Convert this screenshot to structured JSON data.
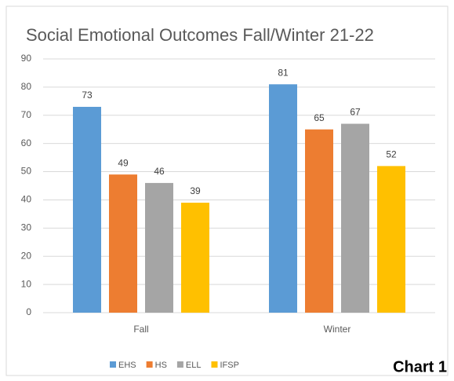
{
  "chart_data": {
    "type": "bar",
    "title": "Social Emotional Outcomes Fall/Winter 21-22",
    "categories": [
      "Fall",
      "Winter"
    ],
    "series": [
      {
        "name": "EHS",
        "color": "#5b9bd5",
        "values": [
          73,
          81
        ]
      },
      {
        "name": "HS",
        "color": "#ed7d31",
        "values": [
          49,
          65
        ]
      },
      {
        "name": "ELL",
        "color": "#a5a5a5",
        "values": [
          46,
          67
        ]
      },
      {
        "name": "IFSP",
        "color": "#ffc000",
        "values": [
          39,
          52
        ]
      }
    ],
    "ylim": [
      0,
      90
    ],
    "yticks": [
      0,
      10,
      20,
      30,
      40,
      50,
      60,
      70,
      80,
      90
    ],
    "grid": true,
    "legend": "bottom",
    "annotations": [
      "Chart 1"
    ]
  }
}
